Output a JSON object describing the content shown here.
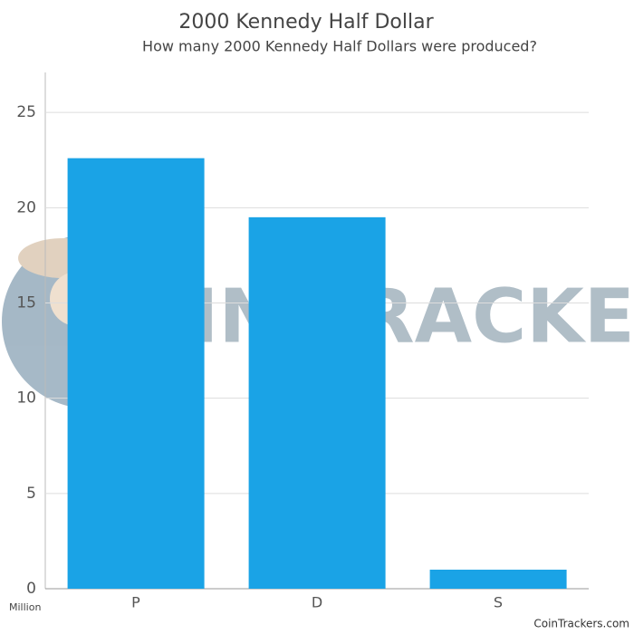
{
  "chart_data": {
    "type": "bar",
    "title": "2000 Kennedy Half Dollar",
    "subtitle": "How many 2000 Kennedy Half Dollars were produced?",
    "y_unit_label": "Million",
    "categories": [
      "P",
      "D",
      "S"
    ],
    "values": [
      22.6,
      19.5,
      1.0
    ],
    "color": "#1aa3e6",
    "ylim": [
      0,
      27.1
    ],
    "yticks": [
      0,
      5,
      10,
      15,
      20,
      25
    ],
    "grid": true,
    "watermark": "COIN TRACKERS",
    "credit": "CoinTrackers.com"
  }
}
